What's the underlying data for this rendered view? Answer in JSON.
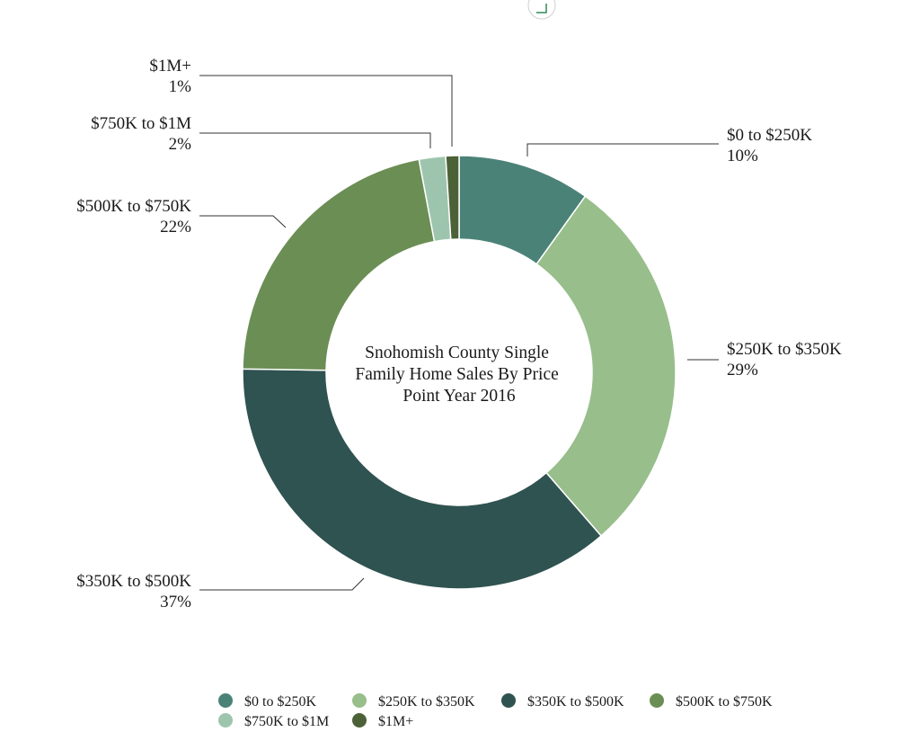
{
  "chart_data": {
    "type": "pie",
    "title": "Snohomish County Single Family Home Sales By Price Point Year 2016",
    "title_lines": [
      "Snohomish County Single",
      "Family Home Sales By Price",
      "Point Year 2016"
    ],
    "categories": [
      "$0 to $250K",
      "$250K to $350K",
      "$350K to $500K",
      "$500K to $750K",
      "$750K to $1M",
      "$1M+"
    ],
    "values": [
      10,
      29,
      37,
      22,
      2,
      1
    ],
    "value_labels": [
      "10%",
      "29%",
      "37%",
      "22%",
      "2%",
      "1%"
    ],
    "colors": [
      "#4b8278",
      "#98be8b",
      "#2f5350",
      "#6b8e54",
      "#9dc5ad",
      "#4c6137"
    ],
    "legend": {
      "position": "bottom"
    },
    "style": "donut"
  }
}
